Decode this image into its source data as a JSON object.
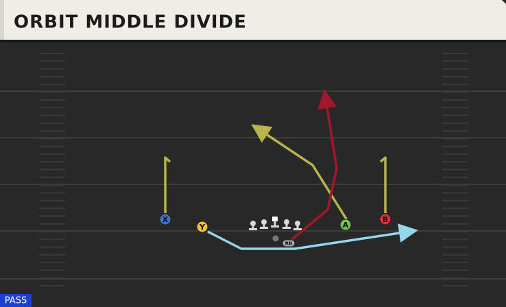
{
  "header": {
    "title": "ORBIT MIDDLE DIVIDE"
  },
  "players": [
    {
      "label": "X"
    },
    {
      "label": "Y"
    },
    {
      "label": "A"
    },
    {
      "label": "B"
    },
    {
      "label": "RB"
    }
  ],
  "badge": "PASS"
}
